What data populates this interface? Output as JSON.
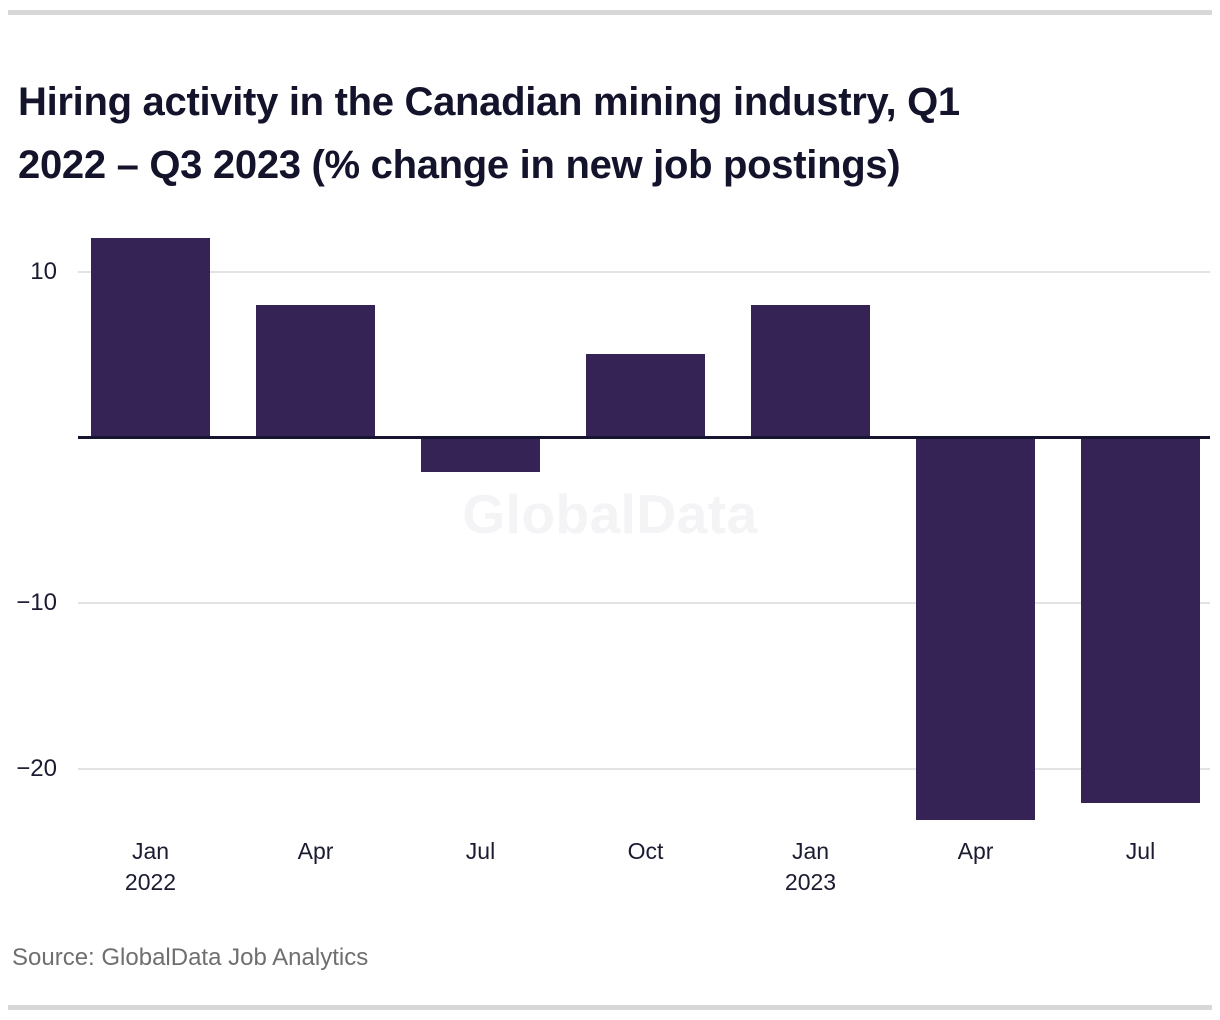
{
  "header": {
    "title_lines": [
      "Hiring activity in the Canadian mining industry, Q1",
      "2022 – Q3 2023 (% change in new job postings)"
    ]
  },
  "chart": {
    "watermark": "GlobalData"
  },
  "footer": {
    "source": "Source: GlobalData Job Analytics"
  },
  "colors": {
    "bar": "#352355",
    "zero_axis": "#161430",
    "gridline": "#e3e3e3",
    "tick_text": "#1b1b31",
    "title_text": "#13132b",
    "source_text": "#6f6f6f",
    "watermark_text": "#f4f3f5",
    "rule": "#d8d8d8"
  },
  "chart_data": {
    "type": "bar",
    "title": "Hiring activity in the Canadian mining industry, Q1 2022 – Q3 2023 (% change in new job postings)",
    "categories": [
      "Jan 2022",
      "Apr 2022",
      "Jul 2022",
      "Oct 2022",
      "Jan 2023",
      "Apr 2023",
      "Jul 2023"
    ],
    "x_tick_labels": [
      [
        "Jan",
        "2022"
      ],
      [
        "Apr"
      ],
      [
        "Jul"
      ],
      [
        "Oct"
      ],
      [
        "Jan",
        "2023"
      ],
      [
        "Apr"
      ],
      [
        "Jul"
      ]
    ],
    "values": [
      12,
      8,
      -2,
      5,
      8,
      -23,
      -22
    ],
    "xlabel": "",
    "ylabel": "",
    "yticks": [
      10,
      -10,
      -20
    ],
    "ytick_labels": [
      "10",
      "−10",
      "−20"
    ],
    "ylim": [
      -25,
      13
    ],
    "grid": "horizontal",
    "legend": "none",
    "watermark": "GlobalData",
    "source": "Source: GlobalData Job Analytics"
  }
}
